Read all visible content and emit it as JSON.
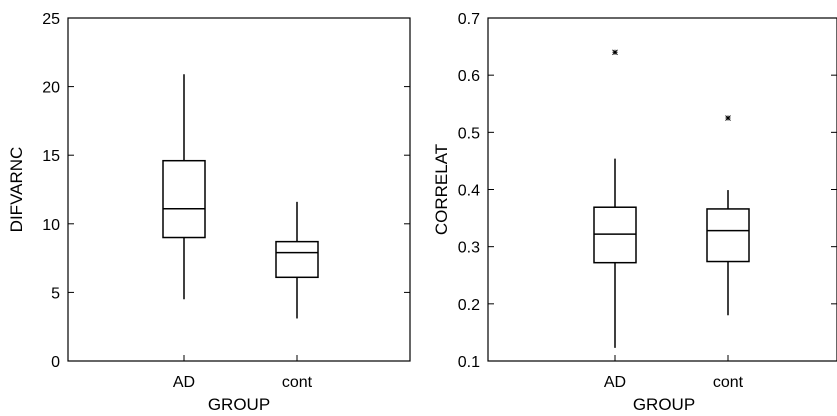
{
  "chart_data": [
    {
      "type": "boxplot",
      "xlabel": "GROUP",
      "ylabel": "DIFVARNC",
      "ylim": [
        0,
        25
      ],
      "yticks": [
        0,
        5,
        10,
        15,
        20,
        25
      ],
      "categories": [
        "AD",
        "cont"
      ],
      "boxes": [
        {
          "category": "AD",
          "whisker_low": 4.5,
          "q1": 9.0,
          "median": 11.1,
          "q3": 14.6,
          "whisker_high": 20.9,
          "outliers": []
        },
        {
          "category": "cont",
          "whisker_low": 3.1,
          "q1": 6.1,
          "median": 7.9,
          "q3": 8.7,
          "whisker_high": 11.6,
          "outliers": []
        }
      ]
    },
    {
      "type": "boxplot",
      "xlabel": "GROUP",
      "ylabel": "CORRELAT",
      "ylim": [
        0.1,
        0.7
      ],
      "yticks": [
        "0.1",
        "0.2",
        "0.3",
        "0.4",
        "0.5",
        "0.6",
        "0.7"
      ],
      "categories": [
        "AD",
        "cont"
      ],
      "boxes": [
        {
          "category": "AD",
          "whisker_low": 0.123,
          "q1": 0.272,
          "median": 0.322,
          "q3": 0.369,
          "whisker_high": 0.454,
          "outliers": [
            0.64
          ]
        },
        {
          "category": "cont",
          "whisker_low": 0.18,
          "q1": 0.274,
          "median": 0.328,
          "q3": 0.366,
          "whisker_high": 0.399,
          "outliers": [
            0.525
          ]
        }
      ]
    }
  ]
}
